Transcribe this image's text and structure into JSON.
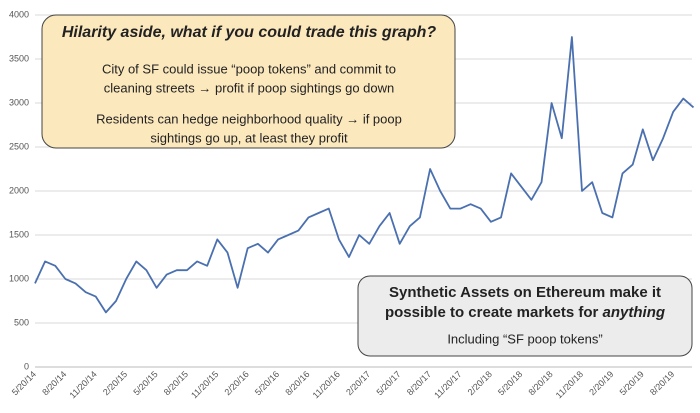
{
  "chart_data": {
    "type": "line",
    "categories": [
      "5/20/14",
      null,
      null,
      "8/20/14",
      null,
      null,
      "11/20/14",
      null,
      null,
      "2/20/15",
      null,
      null,
      "5/20/15",
      null,
      null,
      "8/20/15",
      null,
      null,
      "11/20/15",
      null,
      null,
      "2/20/16",
      null,
      null,
      "5/20/16",
      null,
      null,
      "8/20/16",
      null,
      null,
      "11/20/16",
      null,
      null,
      "2/20/17",
      null,
      null,
      "5/20/17",
      null,
      null,
      "8/20/17",
      null,
      null,
      "11/20/17",
      null,
      null,
      "2/20/18",
      null,
      null,
      "5/20/18",
      null,
      null,
      "8/20/18",
      null,
      null,
      "11/20/18",
      null,
      null,
      "2/20/19",
      null,
      null,
      "5/20/19",
      null,
      null,
      "8/20/19",
      null,
      null
    ],
    "values": [
      950,
      1200,
      1150,
      1000,
      950,
      850,
      800,
      620,
      750,
      1000,
      1200,
      1100,
      900,
      1050,
      1100,
      1100,
      1200,
      1150,
      1450,
      1300,
      900,
      1350,
      1400,
      1300,
      1450,
      1500,
      1550,
      1700,
      1750,
      1800,
      1450,
      1250,
      1500,
      1400,
      1600,
      1750,
      1400,
      1600,
      1700,
      2250,
      2000,
      1800,
      1800,
      1850,
      1800,
      1650,
      1700,
      2200,
      2050,
      1900,
      2100,
      3000,
      2600,
      3750,
      2000,
      2100,
      1750,
      1700,
      2200,
      2300,
      2700,
      2350,
      2600,
      2900,
      3050,
      2950
    ],
    "color": "#4a70b0",
    "ylim": [
      0,
      4000
    ],
    "yticks": [
      0,
      500,
      1000,
      1500,
      2000,
      2500,
      3000,
      3500,
      4000
    ],
    "grid": true,
    "annotations": [
      {
        "title": "Hilarity aside, what if you could trade this graph?",
        "lines": [
          "City of SF could issue “poop tokens” and commit to",
          "cleaning streets → profit if poop sightings go down",
          "Residents can hedge neighborhood quality → if poop",
          "sightings go up, at least they profit"
        ]
      },
      {
        "title_lines": [
          "Synthetic Assets on Ethereum make it",
          "possible to create markets for"
        ],
        "title_emphasis": "anything",
        "lines": [
          "Including “SF poop tokens”"
        ]
      }
    ]
  }
}
